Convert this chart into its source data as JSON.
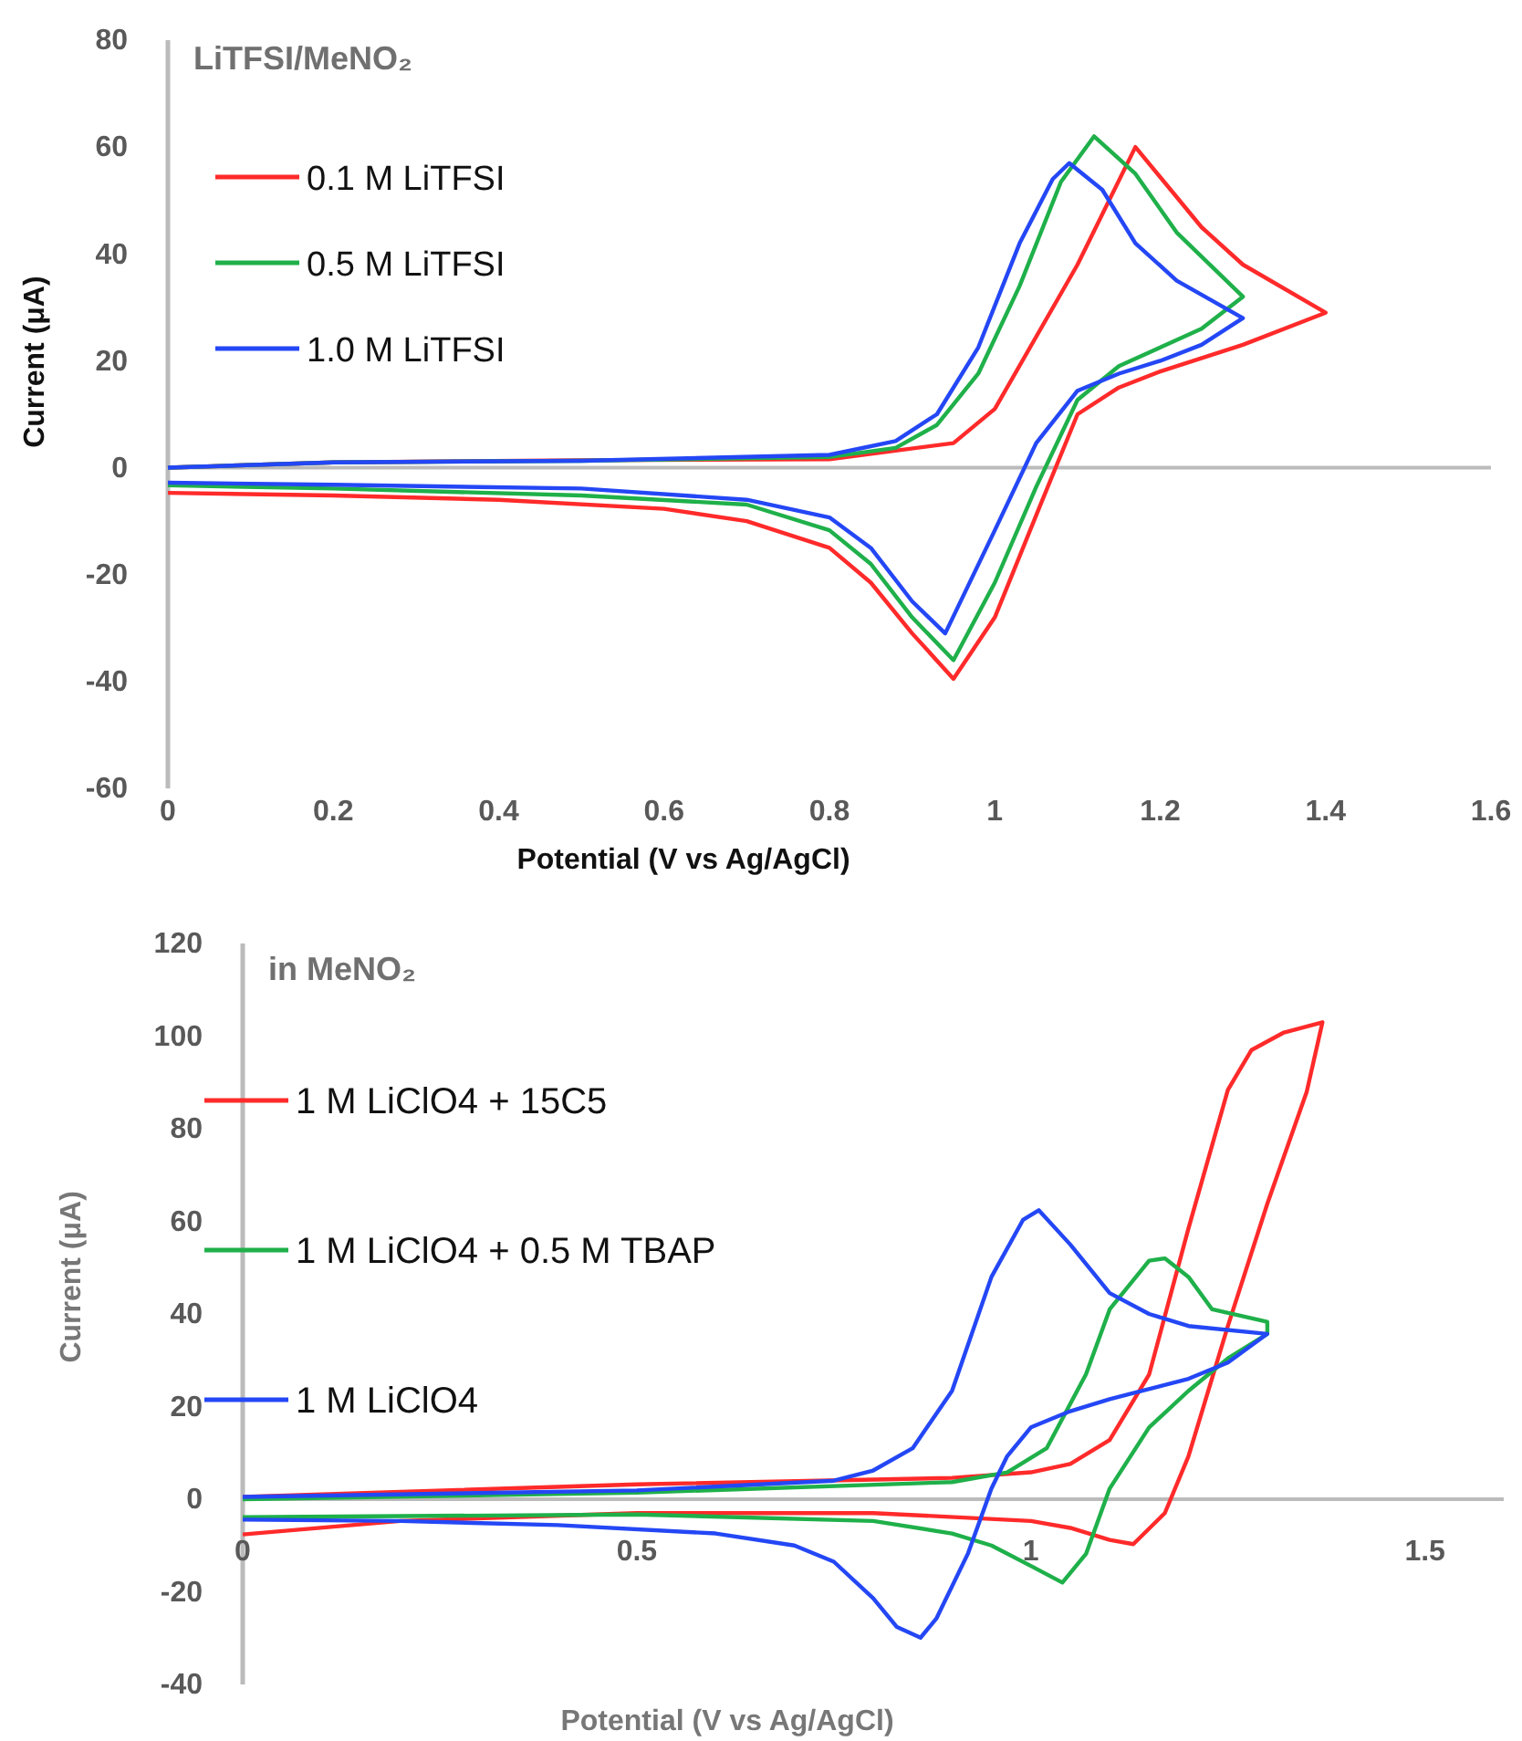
{
  "chart_data": [
    {
      "type": "line",
      "title": "LiTFSI/MeNO₂",
      "xlabel": "Potential (V vs Ag/AgCl)",
      "ylabel": "Current (μA)",
      "xlim": [
        0,
        1.6
      ],
      "xticks": [
        0,
        0.2,
        0.4,
        0.6,
        0.8,
        1,
        1.2,
        1.4,
        1.6
      ],
      "ylim": [
        -60,
        80
      ],
      "yticks": [
        -60,
        -40,
        -20,
        0,
        20,
        40,
        60,
        80
      ],
      "legend": "top left",
      "marker": "none",
      "line_style": "solid",
      "series": [
        {
          "name": "0.1 M LiTFSI",
          "color": "#ff2a2a",
          "x": [
            0,
            0.2,
            0.5,
            0.8,
            0.95,
            1.0,
            1.1,
            1.17,
            1.25,
            1.3,
            1.4,
            1.3,
            1.2,
            1.15,
            1.1,
            1.055,
            1.0,
            0.95,
            0.9,
            0.85,
            0.8,
            0.7,
            0.6,
            0.4,
            0.2,
            0
          ],
          "values": [
            0,
            1,
            1.4,
            1.6,
            4.6,
            11,
            38,
            60,
            45,
            38,
            29,
            23,
            18,
            15,
            10,
            -7,
            -28,
            -39.5,
            -31,
            -21.5,
            -15,
            -10,
            -7.7,
            -6,
            -5.2,
            -4.7
          ]
        },
        {
          "name": "0.5 M LiTFSI",
          "color": "#1fb04a",
          "x": [
            0,
            0.2,
            0.5,
            0.8,
            0.88,
            0.93,
            0.98,
            1.03,
            1.08,
            1.12,
            1.17,
            1.22,
            1.3,
            1.25,
            1.2,
            1.15,
            1.1,
            1.05,
            1.0,
            0.95,
            0.9,
            0.85,
            0.8,
            0.7,
            0.5,
            0.2,
            0
          ],
          "values": [
            0,
            1,
            1.3,
            2,
            3.7,
            8,
            17.6,
            34,
            53.5,
            62,
            55,
            44,
            32,
            26,
            22.5,
            19,
            12.7,
            -3.6,
            -21.5,
            -36,
            -28,
            -18,
            -11.7,
            -6.9,
            -5.2,
            -3.9,
            -3.3
          ]
        },
        {
          "name": "1.0 M LiTFSI",
          "color": "#2447f5",
          "x": [
            0,
            0.2,
            0.5,
            0.8,
            0.88,
            0.93,
            0.98,
            1.03,
            1.07,
            1.09,
            1.13,
            1.17,
            1.22,
            1.3,
            1.25,
            1.2,
            1.15,
            1.1,
            1.05,
            1.0,
            0.94,
            0.9,
            0.85,
            0.8,
            0.7,
            0.5,
            0.2,
            0
          ],
          "values": [
            0,
            1,
            1.3,
            2.4,
            5,
            10,
            22.5,
            42,
            54,
            57,
            52,
            42,
            35,
            28,
            23,
            20,
            17.6,
            14.4,
            4.6,
            -11.7,
            -31,
            -25,
            -15,
            -9.3,
            -6,
            -3.9,
            -3.2,
            -2.8
          ]
        }
      ]
    },
    {
      "type": "line",
      "title": "in MeNO₂",
      "xlabel": "Potential (V vs Ag/AgCl)",
      "ylabel": "Current (μA)",
      "xlim": [
        0,
        1.6
      ],
      "xticks": [
        0,
        0.5,
        1,
        1.5
      ],
      "ylim": [
        -40,
        120
      ],
      "yticks": [
        -40,
        -20,
        0,
        20,
        40,
        60,
        80,
        100,
        120
      ],
      "grid": false,
      "legend": "top left",
      "marker": "none",
      "line_style": "solid",
      "series": [
        {
          "name": "1 M LiClO4 + 15C5",
          "color": "#ff2a2a",
          "x": [
            0,
            0.5,
            0.9,
            1.0,
            1.05,
            1.1,
            1.15,
            1.2,
            1.25,
            1.28,
            1.32,
            1.37,
            1.35,
            1.3,
            1.25,
            1.2,
            1.17,
            1.13,
            1.1,
            1.05,
            1.0,
            0.8,
            0.5,
            0.2,
            0
          ],
          "values": [
            0.5,
            3.2,
            4.6,
            5.8,
            7.6,
            12.8,
            26.9,
            58.5,
            88.4,
            97,
            100.7,
            103,
            88,
            63.8,
            37.4,
            9.3,
            -3,
            -9.7,
            -8.8,
            -6.2,
            -4.7,
            -3,
            -3,
            -4.7,
            -7.6
          ]
        },
        {
          "name": "1 M LiClO4 + 0.5 M TBAP",
          "color": "#1fb04a",
          "x": [
            0,
            0.5,
            0.9,
            0.97,
            1.02,
            1.07,
            1.1,
            1.15,
            1.17,
            1.2,
            1.23,
            1.3,
            1.3,
            1.25,
            1.2,
            1.15,
            1.1,
            1.07,
            1.04,
            1.0,
            0.95,
            0.9,
            0.8,
            0.5,
            0
          ],
          "values": [
            0,
            1.4,
            3.7,
            5.8,
            11,
            27,
            41,
            51.5,
            52,
            48,
            41,
            38.3,
            35.7,
            30.4,
            23.4,
            15.5,
            2.3,
            -11.8,
            -18,
            -14.4,
            -10,
            -7.4,
            -4.7,
            -3.3,
            -3.9
          ]
        },
        {
          "name": "1 M LiClO4",
          "color": "#2447f5",
          "x": [
            0,
            0.5,
            0.75,
            0.8,
            0.85,
            0.9,
            0.95,
            0.99,
            1.01,
            1.05,
            1.1,
            1.15,
            1.2,
            1.3,
            1.25,
            1.2,
            1.1,
            1.05,
            1.0,
            0.97,
            0.95,
            0.92,
            0.88,
            0.86,
            0.83,
            0.8,
            0.75,
            0.7,
            0.6,
            0.4,
            0.2,
            0
          ],
          "values": [
            0.5,
            1.9,
            4,
            6.2,
            11,
            23.4,
            48,
            60.3,
            62.4,
            55,
            44.5,
            40,
            37.4,
            35.7,
            29.5,
            26,
            21.6,
            19,
            15.5,
            9.3,
            2.3,
            -11.8,
            -25.8,
            -29.9,
            -27.6,
            -21.4,
            -13.5,
            -10,
            -7.4,
            -5.6,
            -4.7,
            -4.4
          ]
        }
      ]
    }
  ]
}
